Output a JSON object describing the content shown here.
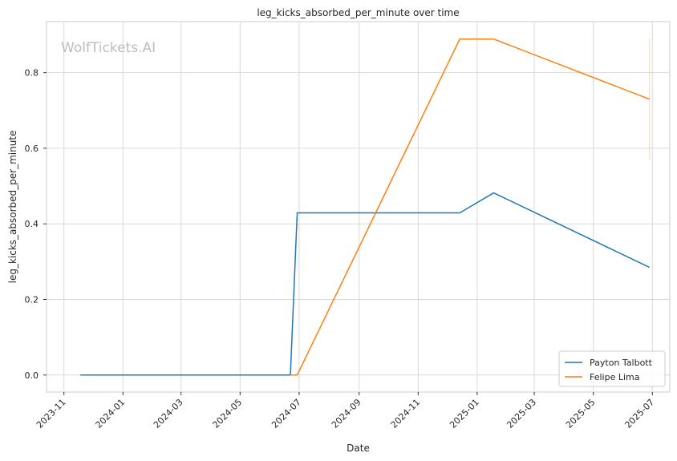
{
  "chart_data": {
    "type": "line",
    "title": "leg_kicks_absorbed_per_minute over time",
    "xlabel": "Date",
    "ylabel": "leg_kicks_absorbed_per_minute",
    "watermark": "WolfTickets.AI",
    "x_ticks": [
      "2023-11",
      "2024-01",
      "2024-03",
      "2024-05",
      "2024-07",
      "2024-09",
      "2024-11",
      "2025-01",
      "2025-03",
      "2025-05",
      "2025-07"
    ],
    "y_ticks": [
      "0.0",
      "0.2",
      "0.4",
      "0.6",
      "0.8"
    ],
    "xlim": [
      "2023-10-14",
      "2025-07-19"
    ],
    "ylim": [
      -0.045,
      0.935
    ],
    "grid": true,
    "legend_position": "lower right",
    "series": [
      {
        "name": "Payton Talbott",
        "color": "#1f77b4",
        "points": [
          {
            "x": "2023-11-18",
            "y": 0.0
          },
          {
            "x": "2024-06-22",
            "y": 0.0
          },
          {
            "x": "2024-06-29",
            "y": 0.429
          },
          {
            "x": "2024-12-14",
            "y": 0.429
          },
          {
            "x": "2025-01-18",
            "y": 0.482
          },
          {
            "x": "2025-06-28",
            "y": 0.285
          }
        ]
      },
      {
        "name": "Felipe Lima",
        "color": "#ff7f0e",
        "points": [
          {
            "x": "2024-06-22",
            "y": 0.0
          },
          {
            "x": "2024-06-29",
            "y": 0.0
          },
          {
            "x": "2024-12-14",
            "y": 0.889
          },
          {
            "x": "2025-01-18",
            "y": 0.889
          },
          {
            "x": "2025-06-28",
            "y": 0.73
          }
        ]
      }
    ],
    "error_band": {
      "color": "#ff7f0e",
      "x": "2025-06-28",
      "y_range": [
        0.57,
        0.89
      ]
    }
  }
}
